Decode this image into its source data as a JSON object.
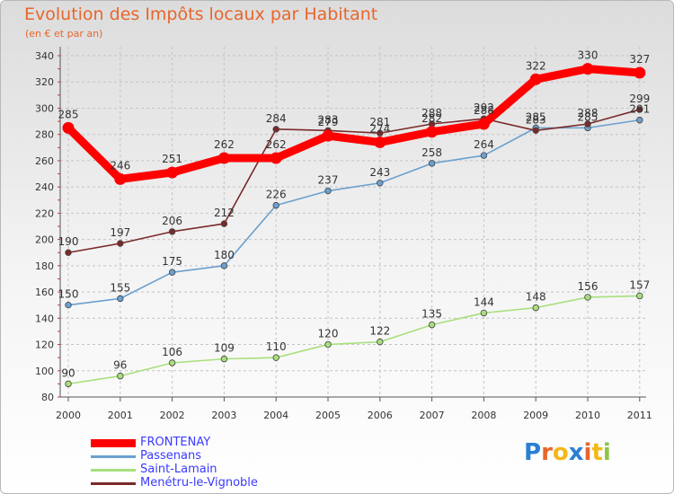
{
  "chart_data": {
    "type": "line",
    "title": "Evolution des Impôts locaux par Habitant",
    "subtitle": "(en € et par an)",
    "x": [
      "2000",
      "2001",
      "2002",
      "2003",
      "2004",
      "2005",
      "2006",
      "2007",
      "2008",
      "2009",
      "2010",
      "2011"
    ],
    "yticks": [
      80,
      100,
      120,
      140,
      160,
      180,
      200,
      220,
      240,
      260,
      280,
      300,
      320,
      340
    ],
    "ylim": [
      80,
      340
    ],
    "grid": true,
    "legend_position": "bottom-left",
    "series": [
      {
        "name": "FRONTENAY",
        "color": "#ff0000",
        "values": [
          285,
          246,
          251,
          262,
          262,
          279,
          274,
          282,
          288,
          322,
          330,
          327
        ]
      },
      {
        "name": "Passenans",
        "color": "#6aa0cf",
        "values": [
          150,
          155,
          175,
          180,
          226,
          237,
          243,
          258,
          264,
          285,
          285,
          291
        ]
      },
      {
        "name": "Saint-Lamain",
        "color": "#a8df7c",
        "values": [
          90,
          96,
          106,
          109,
          110,
          120,
          122,
          135,
          144,
          148,
          156,
          157
        ]
      },
      {
        "name": "Menétru-le-Vignoble",
        "color": "#7a2a2a",
        "values": [
          190,
          197,
          206,
          212,
          284,
          283,
          281,
          288,
          292,
          283,
          288,
          299
        ]
      }
    ]
  },
  "logo": {
    "letters": [
      "P",
      "r",
      "o",
      "x",
      "i",
      "t",
      "i"
    ],
    "colors": [
      "#2a7fd4",
      "#e8662c",
      "#f2b817",
      "#2a7fd4",
      "#e8662c",
      "#f2b817",
      "#8cc63f"
    ]
  }
}
